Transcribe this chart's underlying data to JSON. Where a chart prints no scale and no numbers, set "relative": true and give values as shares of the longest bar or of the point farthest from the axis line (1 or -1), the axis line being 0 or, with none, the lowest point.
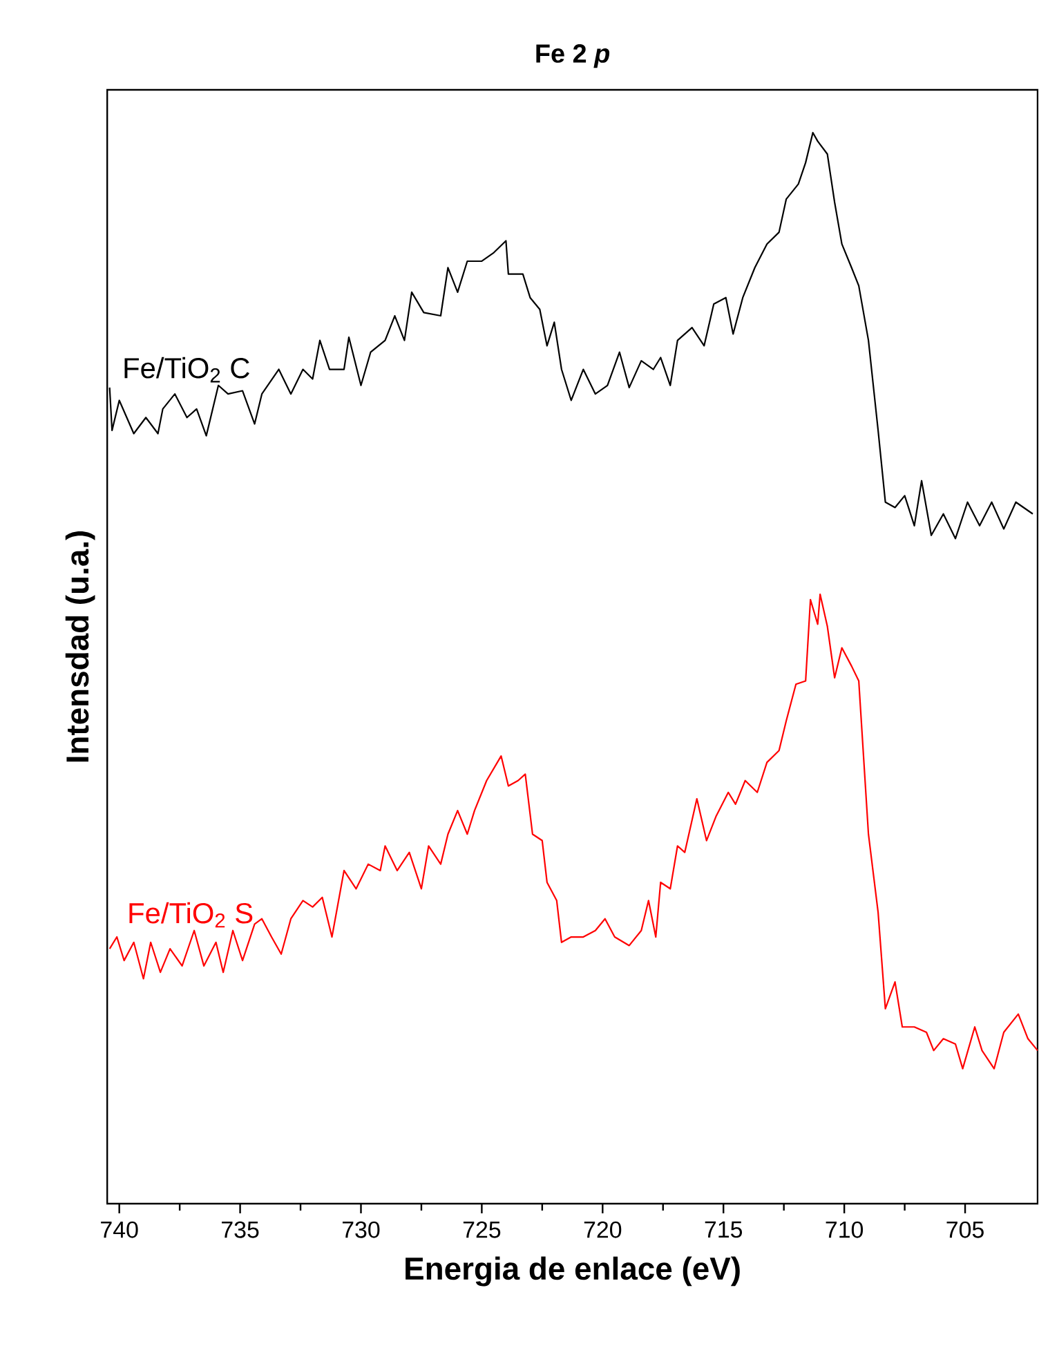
{
  "chart_data": {
    "type": "line",
    "title": "Fe 2 *p*",
    "xlabel": "Energia de enlace (eV)",
    "ylabel": "Intensdad (u.a.)",
    "relative": true,
    "xlim": [
      740.5,
      702
    ],
    "xticks": [
      740,
      735,
      730,
      725,
      720,
      715,
      710,
      705
    ],
    "series": [
      {
        "name": "Fe/TiO$_{2}$ C",
        "color": "#000000",
        "x": [
          740.4,
          740.3,
          740.0,
          739.4,
          738.9,
          738.4,
          738.2,
          737.7,
          737.2,
          736.8,
          736.4,
          735.9,
          735.5,
          734.9,
          734.4,
          734.1,
          733.4,
          732.9,
          732.4,
          732.0,
          731.7,
          731.3,
          730.7,
          730.5,
          730.0,
          729.6,
          729.0,
          728.6,
          728.2,
          727.9,
          727.4,
          726.7,
          726.4,
          726.0,
          725.6,
          725.0,
          724.5,
          724.0,
          723.9,
          723.3,
          723.0,
          722.6,
          722.3,
          722.0,
          721.7,
          721.3,
          720.8,
          720.3,
          719.8,
          719.3,
          718.9,
          718.4,
          717.9,
          717.6,
          717.2,
          716.9,
          716.3,
          715.8,
          715.4,
          714.9,
          714.6,
          714.2,
          713.7,
          713.2,
          712.7,
          712.4,
          711.9,
          711.6,
          711.3,
          711.1,
          710.7,
          710.4,
          710.1,
          709.7,
          709.4,
          709.0,
          708.6,
          708.3,
          707.9,
          707.5,
          707.1,
          706.8,
          706.4,
          705.9,
          705.4,
          704.9,
          704.4,
          703.9,
          703.4,
          702.9,
          702.2
        ],
        "values": [
          0.762,
          0.722,
          0.75,
          0.719,
          0.734,
          0.719,
          0.742,
          0.756,
          0.734,
          0.742,
          0.717,
          0.764,
          0.756,
          0.759,
          0.728,
          0.756,
          0.779,
          0.756,
          0.779,
          0.77,
          0.806,
          0.779,
          0.779,
          0.809,
          0.764,
          0.795,
          0.806,
          0.829,
          0.806,
          0.851,
          0.832,
          0.829,
          0.874,
          0.851,
          0.88,
          0.88,
          0.888,
          0.899,
          0.868,
          0.868,
          0.846,
          0.835,
          0.801,
          0.823,
          0.779,
          0.75,
          0.779,
          0.756,
          0.764,
          0.795,
          0.762,
          0.787,
          0.779,
          0.79,
          0.764,
          0.806,
          0.818,
          0.801,
          0.84,
          0.846,
          0.812,
          0.846,
          0.874,
          0.896,
          0.907,
          0.938,
          0.952,
          0.972,
          1.0,
          0.992,
          0.98,
          0.935,
          0.896,
          0.874,
          0.857,
          0.806,
          0.722,
          0.655,
          0.65,
          0.661,
          0.633,
          0.675,
          0.624,
          0.644,
          0.621,
          0.655,
          0.633,
          0.655,
          0.63,
          0.655,
          0.644
        ]
      },
      {
        "name": "Fe/TiO$_{2}$ S",
        "color": "#ff0000",
        "x": [
          740.4,
          740.1,
          739.8,
          739.4,
          739.0,
          738.7,
          738.3,
          737.9,
          737.4,
          736.9,
          736.5,
          736.0,
          735.7,
          735.3,
          734.9,
          734.4,
          734.1,
          733.7,
          733.3,
          732.9,
          732.4,
          732.0,
          731.6,
          731.2,
          730.7,
          730.2,
          729.7,
          729.2,
          729.0,
          728.5,
          728.0,
          727.5,
          727.2,
          726.7,
          726.4,
          726.0,
          725.6,
          725.3,
          724.8,
          724.2,
          723.9,
          723.5,
          723.2,
          722.9,
          722.5,
          722.3,
          721.9,
          721.7,
          721.3,
          720.8,
          720.3,
          719.9,
          719.5,
          718.9,
          718.4,
          718.1,
          717.8,
          717.6,
          717.2,
          716.9,
          716.6,
          716.1,
          715.7,
          715.3,
          714.8,
          714.5,
          714.1,
          713.6,
          713.2,
          712.7,
          712.4,
          712.0,
          711.6,
          711.4,
          711.1,
          711.0,
          710.7,
          710.4,
          710.1,
          709.7,
          709.4,
          709.0,
          708.6,
          708.3,
          707.9,
          707.6,
          707.1,
          706.6,
          706.3,
          705.9,
          705.4,
          705.1,
          704.6,
          704.3,
          703.8,
          703.4,
          702.8,
          702.4,
          702.0
        ],
        "values": [
          0.238,
          0.249,
          0.227,
          0.244,
          0.21,
          0.244,
          0.216,
          0.238,
          0.222,
          0.255,
          0.222,
          0.244,
          0.216,
          0.255,
          0.227,
          0.261,
          0.266,
          0.249,
          0.233,
          0.266,
          0.283,
          0.277,
          0.286,
          0.249,
          0.311,
          0.294,
          0.317,
          0.311,
          0.334,
          0.311,
          0.328,
          0.294,
          0.334,
          0.317,
          0.345,
          0.367,
          0.345,
          0.367,
          0.395,
          0.418,
          0.39,
          0.395,
          0.401,
          0.345,
          0.339,
          0.3,
          0.283,
          0.244,
          0.249,
          0.249,
          0.255,
          0.266,
          0.249,
          0.241,
          0.255,
          0.283,
          0.249,
          0.3,
          0.294,
          0.334,
          0.328,
          0.378,
          0.339,
          0.362,
          0.384,
          0.373,
          0.395,
          0.384,
          0.412,
          0.423,
          0.451,
          0.485,
          0.488,
          0.564,
          0.541,
          0.569,
          0.539,
          0.491,
          0.519,
          0.502,
          0.488,
          0.345,
          0.272,
          0.182,
          0.207,
          0.165,
          0.165,
          0.16,
          0.143,
          0.154,
          0.149,
          0.126,
          0.165,
          0.143,
          0.126,
          0.16,
          0.177,
          0.154,
          0.143
        ]
      }
    ]
  }
}
